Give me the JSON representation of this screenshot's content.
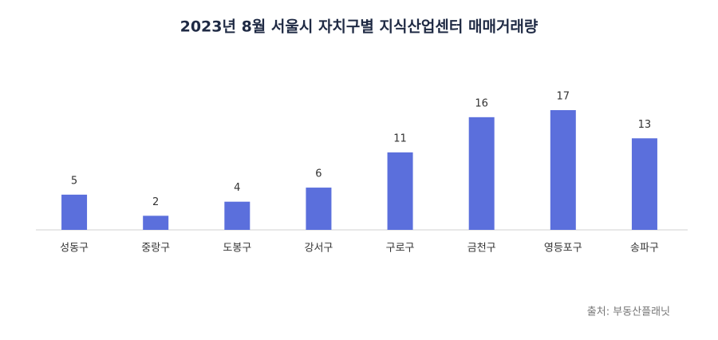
{
  "chart_data": {
    "type": "bar",
    "title": "2023년 8월 서울시 자치구별 지식산업센터 매매거래량",
    "categories": [
      "성동구",
      "중랑구",
      "도봉구",
      "강서구",
      "구로구",
      "금천구",
      "영등포구",
      "송파구"
    ],
    "values": [
      5,
      2,
      4,
      6,
      11,
      16,
      17,
      13
    ],
    "color": "#5b6fdc",
    "source": "출처: 부동산플래닛"
  }
}
